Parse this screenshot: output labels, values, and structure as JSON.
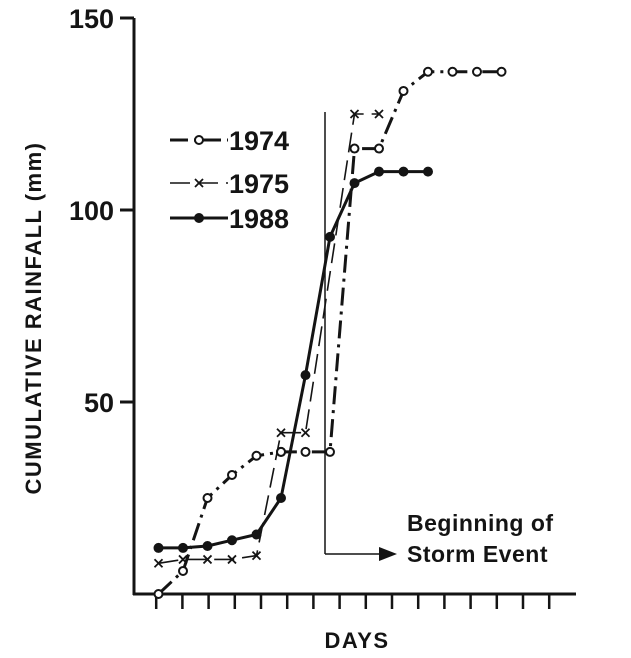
{
  "chart_data": {
    "type": "line",
    "title": "",
    "xlabel": "DAYS",
    "ylabel": "CUMULATIVE RAINFALL (mm)",
    "ylim": [
      0,
      150
    ],
    "yticks": [
      50,
      100,
      150
    ],
    "x_tick_count": 16,
    "x": [
      1,
      2,
      3,
      4,
      5,
      6,
      7,
      8,
      9,
      10,
      11,
      12,
      13,
      14,
      15
    ],
    "grid": false,
    "legend_position": "upper-left",
    "series": [
      {
        "name": "1974",
        "style": "dash-dot with open circles",
        "color": "#141414",
        "points": [
          [
            1,
            0
          ],
          [
            2,
            6
          ],
          [
            3,
            25
          ],
          [
            4,
            31
          ],
          [
            5,
            36
          ],
          [
            6,
            37
          ],
          [
            6,
            37
          ],
          [
            7,
            37
          ],
          [
            8,
            37
          ],
          [
            9,
            116
          ],
          [
            10,
            116
          ],
          [
            11,
            131
          ],
          [
            12,
            136
          ],
          [
            13,
            136
          ],
          [
            14,
            136
          ],
          [
            15,
            136
          ]
        ]
      },
      {
        "name": "1975",
        "style": "long dash with x markers",
        "color": "#141414",
        "points": [
          [
            1,
            8
          ],
          [
            2,
            9
          ],
          [
            3,
            9
          ],
          [
            4,
            9
          ],
          [
            5,
            10
          ],
          [
            6,
            42
          ],
          [
            7,
            42
          ],
          [
            9,
            125
          ],
          [
            10,
            125
          ]
        ]
      },
      {
        "name": "1988",
        "style": "solid with filled circles",
        "color": "#141414",
        "points": [
          [
            1,
            12
          ],
          [
            2,
            12
          ],
          [
            3,
            12.5
          ],
          [
            4,
            14
          ],
          [
            5,
            15.5
          ],
          [
            6,
            25
          ],
          [
            7,
            57
          ],
          [
            8,
            93
          ],
          [
            9,
            107
          ],
          [
            10,
            110
          ],
          [
            11,
            110
          ],
          [
            12,
            110
          ]
        ]
      }
    ],
    "annotations": [
      {
        "text_line1": "Beginning of",
        "text_line2": "Storm Event",
        "day": 6.1
      }
    ]
  }
}
